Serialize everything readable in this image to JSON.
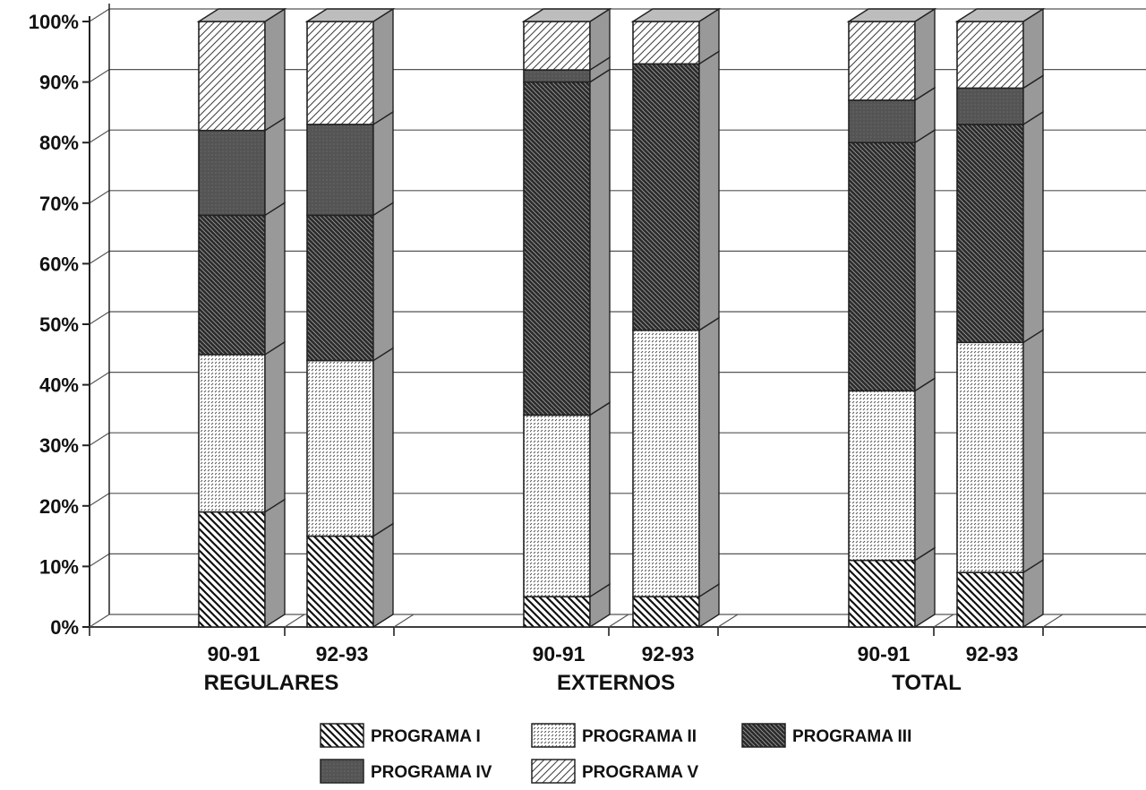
{
  "chart_data": {
    "type": "bar",
    "stacked": true,
    "percent": true,
    "three_d": true,
    "title": "",
    "xlabel": "",
    "ylabel": "",
    "ylim": [
      0,
      100
    ],
    "y_ticks": [
      "0%",
      "10%",
      "20%",
      "30%",
      "40%",
      "50%",
      "60%",
      "70%",
      "80%",
      "90%",
      "100%"
    ],
    "grid": true,
    "legend_position": "bottom",
    "groups": [
      "REGULARES",
      "EXTERNOS",
      "TOTAL"
    ],
    "categories": [
      "90-91",
      "92-93",
      "90-91",
      "92-93",
      "90-91",
      "92-93"
    ],
    "series": [
      {
        "name": "PROGRAMA I",
        "pattern": "diagonal-down",
        "values": [
          19,
          15,
          5,
          5,
          11,
          9
        ]
      },
      {
        "name": "PROGRAMA II",
        "pattern": "dotted-light",
        "values": [
          26,
          29,
          30,
          44,
          28,
          38
        ]
      },
      {
        "name": "PROGRAMA III",
        "pattern": "dense-dark-diagonal",
        "values": [
          23,
          24,
          55,
          44,
          41,
          36
        ]
      },
      {
        "name": "PROGRAMA IV",
        "pattern": "solid-dark",
        "values": [
          14,
          15,
          2,
          0,
          7,
          6
        ]
      },
      {
        "name": "PROGRAMA V",
        "pattern": "diagonal-up-light",
        "values": [
          18,
          17,
          8,
          7,
          13,
          11
        ]
      }
    ],
    "colors": {
      "ink": "#222222",
      "grid": "#555555",
      "side": "#999999",
      "top": "#bdbdbd",
      "dark_fill": "#3a3a3a"
    }
  }
}
